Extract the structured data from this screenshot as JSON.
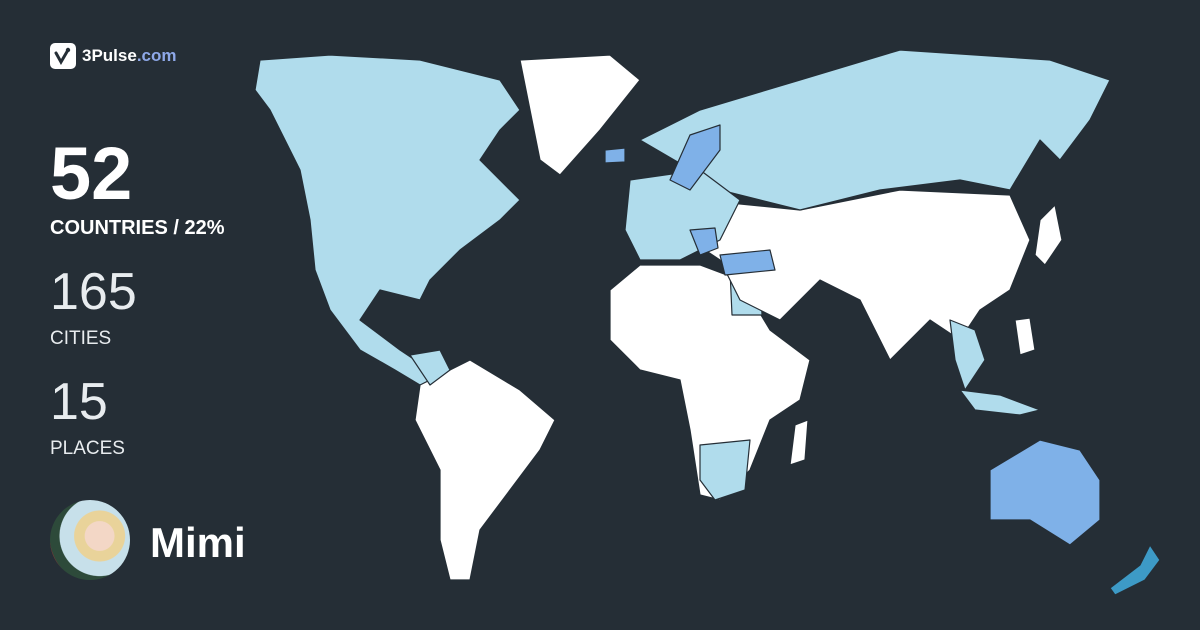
{
  "brand": {
    "name": "3Pulse",
    "tld": ".com",
    "icon": "pulse-check-icon"
  },
  "stats": {
    "countries_value": "52",
    "countries_label": "COUNTRIES / 22%",
    "cities_value": "165",
    "cities_label": "CITIES",
    "places_value": "15",
    "places_label": "PLACES"
  },
  "user": {
    "name": "Mimi",
    "avatar": "user-avatar-photo"
  },
  "colors": {
    "background": "#252e36",
    "unvisited": "#ffffff",
    "visited": "#b0dcec",
    "visited_highlight": "#7fb1e8",
    "visited_strong": "#3d9ac6",
    "border": "#252e36"
  }
}
